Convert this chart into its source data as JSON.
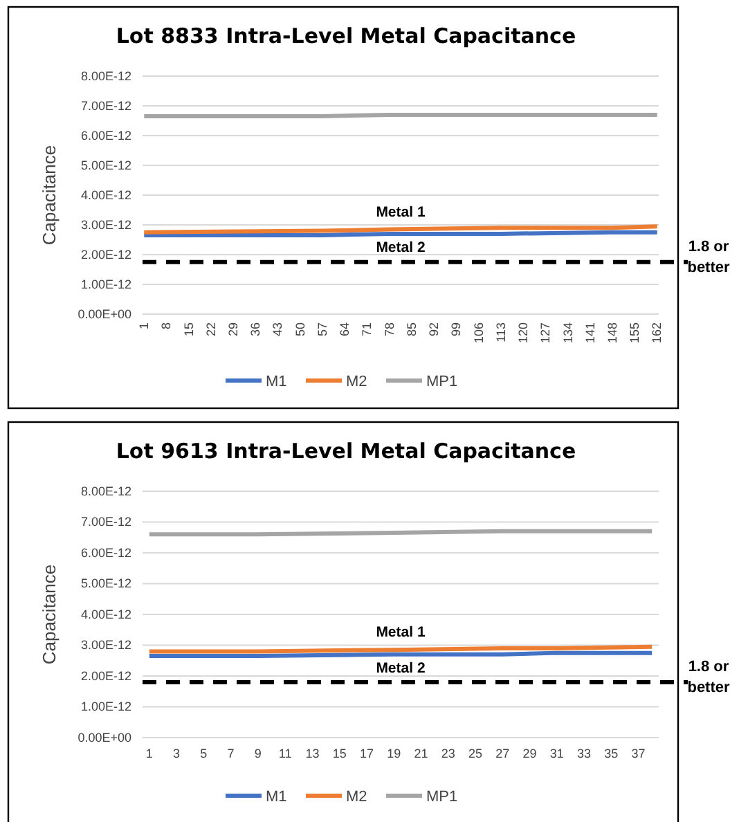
{
  "chart_data": [
    {
      "type": "line",
      "title": "Lot 8833 Intra-Level Metal Capacitance",
      "ylabel": "Capacitance",
      "x": [
        1,
        57,
        78,
        113,
        148,
        162
      ],
      "xlim": [
        0.5,
        162.5
      ],
      "xticks": [
        1,
        8,
        15,
        22,
        29,
        36,
        43,
        50,
        57,
        64,
        71,
        78,
        85,
        92,
        99,
        106,
        113,
        120,
        127,
        134,
        141,
        148,
        155,
        162
      ],
      "ylim": [
        0,
        8e-12
      ],
      "yticks": [
        {
          "value": 0,
          "label": "0.00E+00"
        },
        {
          "value": 1e-12,
          "label": "1.00E-12"
        },
        {
          "value": 2e-12,
          "label": "2.00E-12"
        },
        {
          "value": 3e-12,
          "label": "3.00E-12"
        },
        {
          "value": 4e-12,
          "label": "4.00E-12"
        },
        {
          "value": 5e-12,
          "label": "5.00E-12"
        },
        {
          "value": 6e-12,
          "label": "6.00E-12"
        },
        {
          "value": 7e-12,
          "label": "7.00E-12"
        },
        {
          "value": 8e-12,
          "label": "8.00E-12"
        }
      ],
      "series": [
        {
          "name": "M1",
          "color": "#4472c4",
          "values": [
            2.65e-12,
            2.65e-12,
            2.7e-12,
            2.7e-12,
            2.75e-12,
            2.75e-12
          ]
        },
        {
          "name": "M2",
          "color": "#ed7d31",
          "values": [
            2.75e-12,
            2.8e-12,
            2.85e-12,
            2.9e-12,
            2.9e-12,
            2.95e-12
          ]
        },
        {
          "name": "MP1",
          "color": "#a5a5a5",
          "values": [
            6.65e-12,
            6.65e-12,
            6.7e-12,
            6.7e-12,
            6.7e-12,
            6.7e-12
          ]
        }
      ],
      "ref_lines": [
        {
          "axis": "y",
          "value": 1.75e-12,
          "label": "1.8 or better",
          "color": "#000000",
          "line_style": "dashed"
        }
      ],
      "annotations": [
        "Metal 1",
        "Metal 2"
      ],
      "grid": "y",
      "legend": "bottom",
      "marker": "none",
      "line_style": "solid"
    },
    {
      "type": "line",
      "title": "Lot 9613 Intra-Level Metal Capacitance",
      "ylabel": "Capacitance",
      "x": [
        1,
        9,
        19,
        27,
        31,
        38
      ],
      "xlim": [
        0.5,
        38.5
      ],
      "xticks": [
        1,
        3,
        5,
        7,
        9,
        11,
        13,
        15,
        17,
        19,
        21,
        23,
        25,
        27,
        29,
        31,
        33,
        35,
        37
      ],
      "ylim": [
        0,
        8e-12
      ],
      "yticks": [
        {
          "value": 0,
          "label": "0.00E+00"
        },
        {
          "value": 1e-12,
          "label": "1.00E-12"
        },
        {
          "value": 2e-12,
          "label": "2.00E-12"
        },
        {
          "value": 3e-12,
          "label": "3.00E-12"
        },
        {
          "value": 4e-12,
          "label": "4.00E-12"
        },
        {
          "value": 5e-12,
          "label": "5.00E-12"
        },
        {
          "value": 6e-12,
          "label": "6.00E-12"
        },
        {
          "value": 7e-12,
          "label": "7.00E-12"
        },
        {
          "value": 8e-12,
          "label": "8.00E-12"
        }
      ],
      "series": [
        {
          "name": "M1",
          "color": "#4472c4",
          "values": [
            2.65e-12,
            2.65e-12,
            2.7e-12,
            2.7e-12,
            2.75e-12,
            2.75e-12
          ]
        },
        {
          "name": "M2",
          "color": "#ed7d31",
          "values": [
            2.8e-12,
            2.8e-12,
            2.85e-12,
            2.9e-12,
            2.9e-12,
            2.95e-12
          ]
        },
        {
          "name": "MP1",
          "color": "#a5a5a5",
          "values": [
            6.6e-12,
            6.6e-12,
            6.65e-12,
            6.7e-12,
            6.7e-12,
            6.7e-12
          ]
        }
      ],
      "ref_lines": [
        {
          "axis": "y",
          "value": 1.8e-12,
          "label": "1.8 or better",
          "color": "#000000",
          "line_style": "dashed"
        }
      ],
      "annotations": [
        "Metal 1",
        "Metal 2"
      ],
      "grid": "y",
      "legend": "bottom",
      "marker": "none",
      "line_style": "solid"
    }
  ]
}
